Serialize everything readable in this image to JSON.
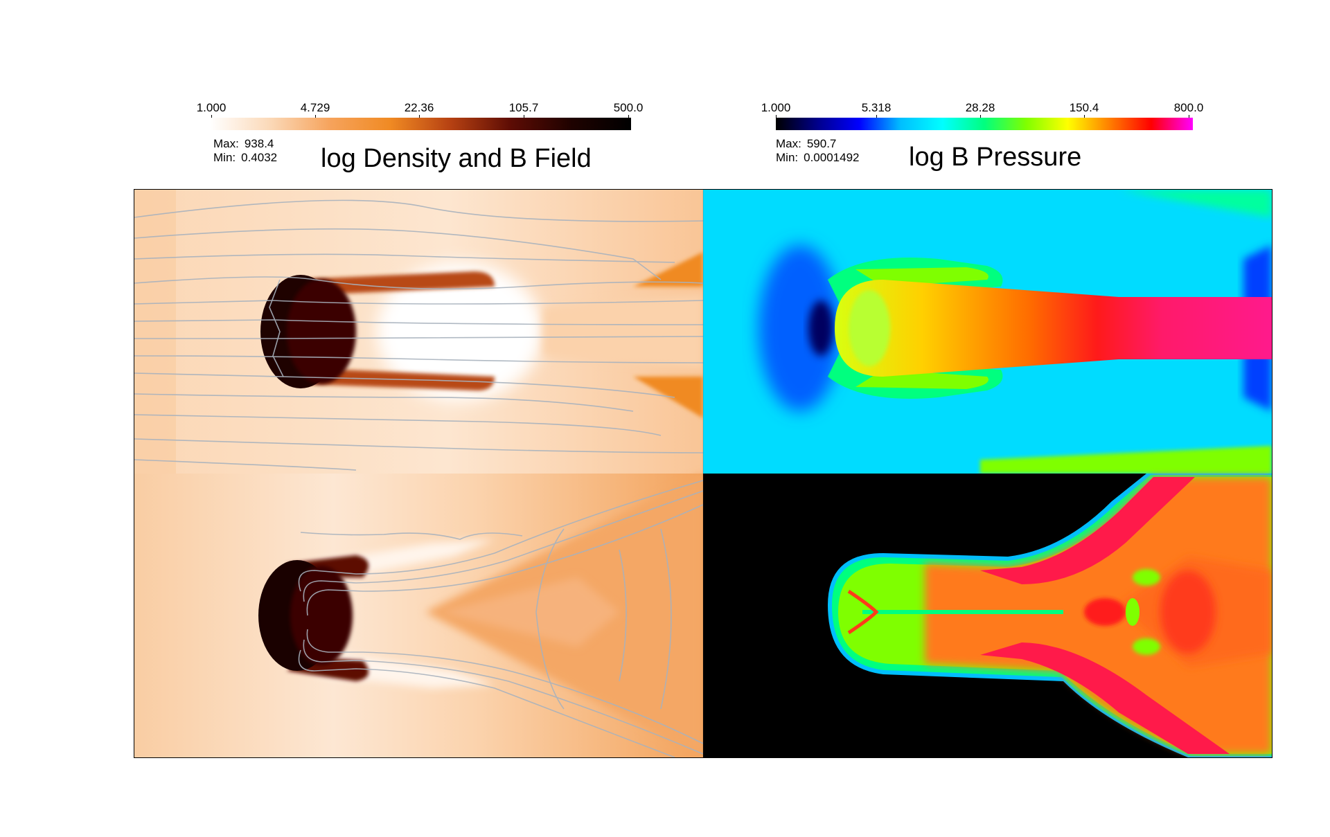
{
  "density_panel": {
    "title": "log Density and B Field",
    "colorbar": {
      "ticks": [
        "1.000",
        "4.729",
        "22.36",
        "105.7",
        "500.0"
      ],
      "max_label": "Max:",
      "max_value": "938.4",
      "min_label": "Min:",
      "min_value": "0.4032",
      "colors": [
        "#ffffff",
        "#fbd9b8",
        "#f6a35c",
        "#f08a23",
        "#b64112",
        "#5d0c04",
        "#1f0200",
        "#000000"
      ]
    }
  },
  "pressure_panel": {
    "title": "log B Pressure",
    "colorbar": {
      "ticks": [
        "1.000",
        "5.318",
        "28.28",
        "150.4",
        "800.0"
      ],
      "max_label": "Max:",
      "max_value": "590.7",
      "min_label": "Min:",
      "min_value": "0.0001492",
      "colors": [
        "#000000",
        "#00008b",
        "#0000ff",
        "#00bfff",
        "#00ffff",
        "#00ff7f",
        "#7fff00",
        "#ffff00",
        "#ff7f00",
        "#ff0000",
        "#ff00ff"
      ]
    }
  }
}
